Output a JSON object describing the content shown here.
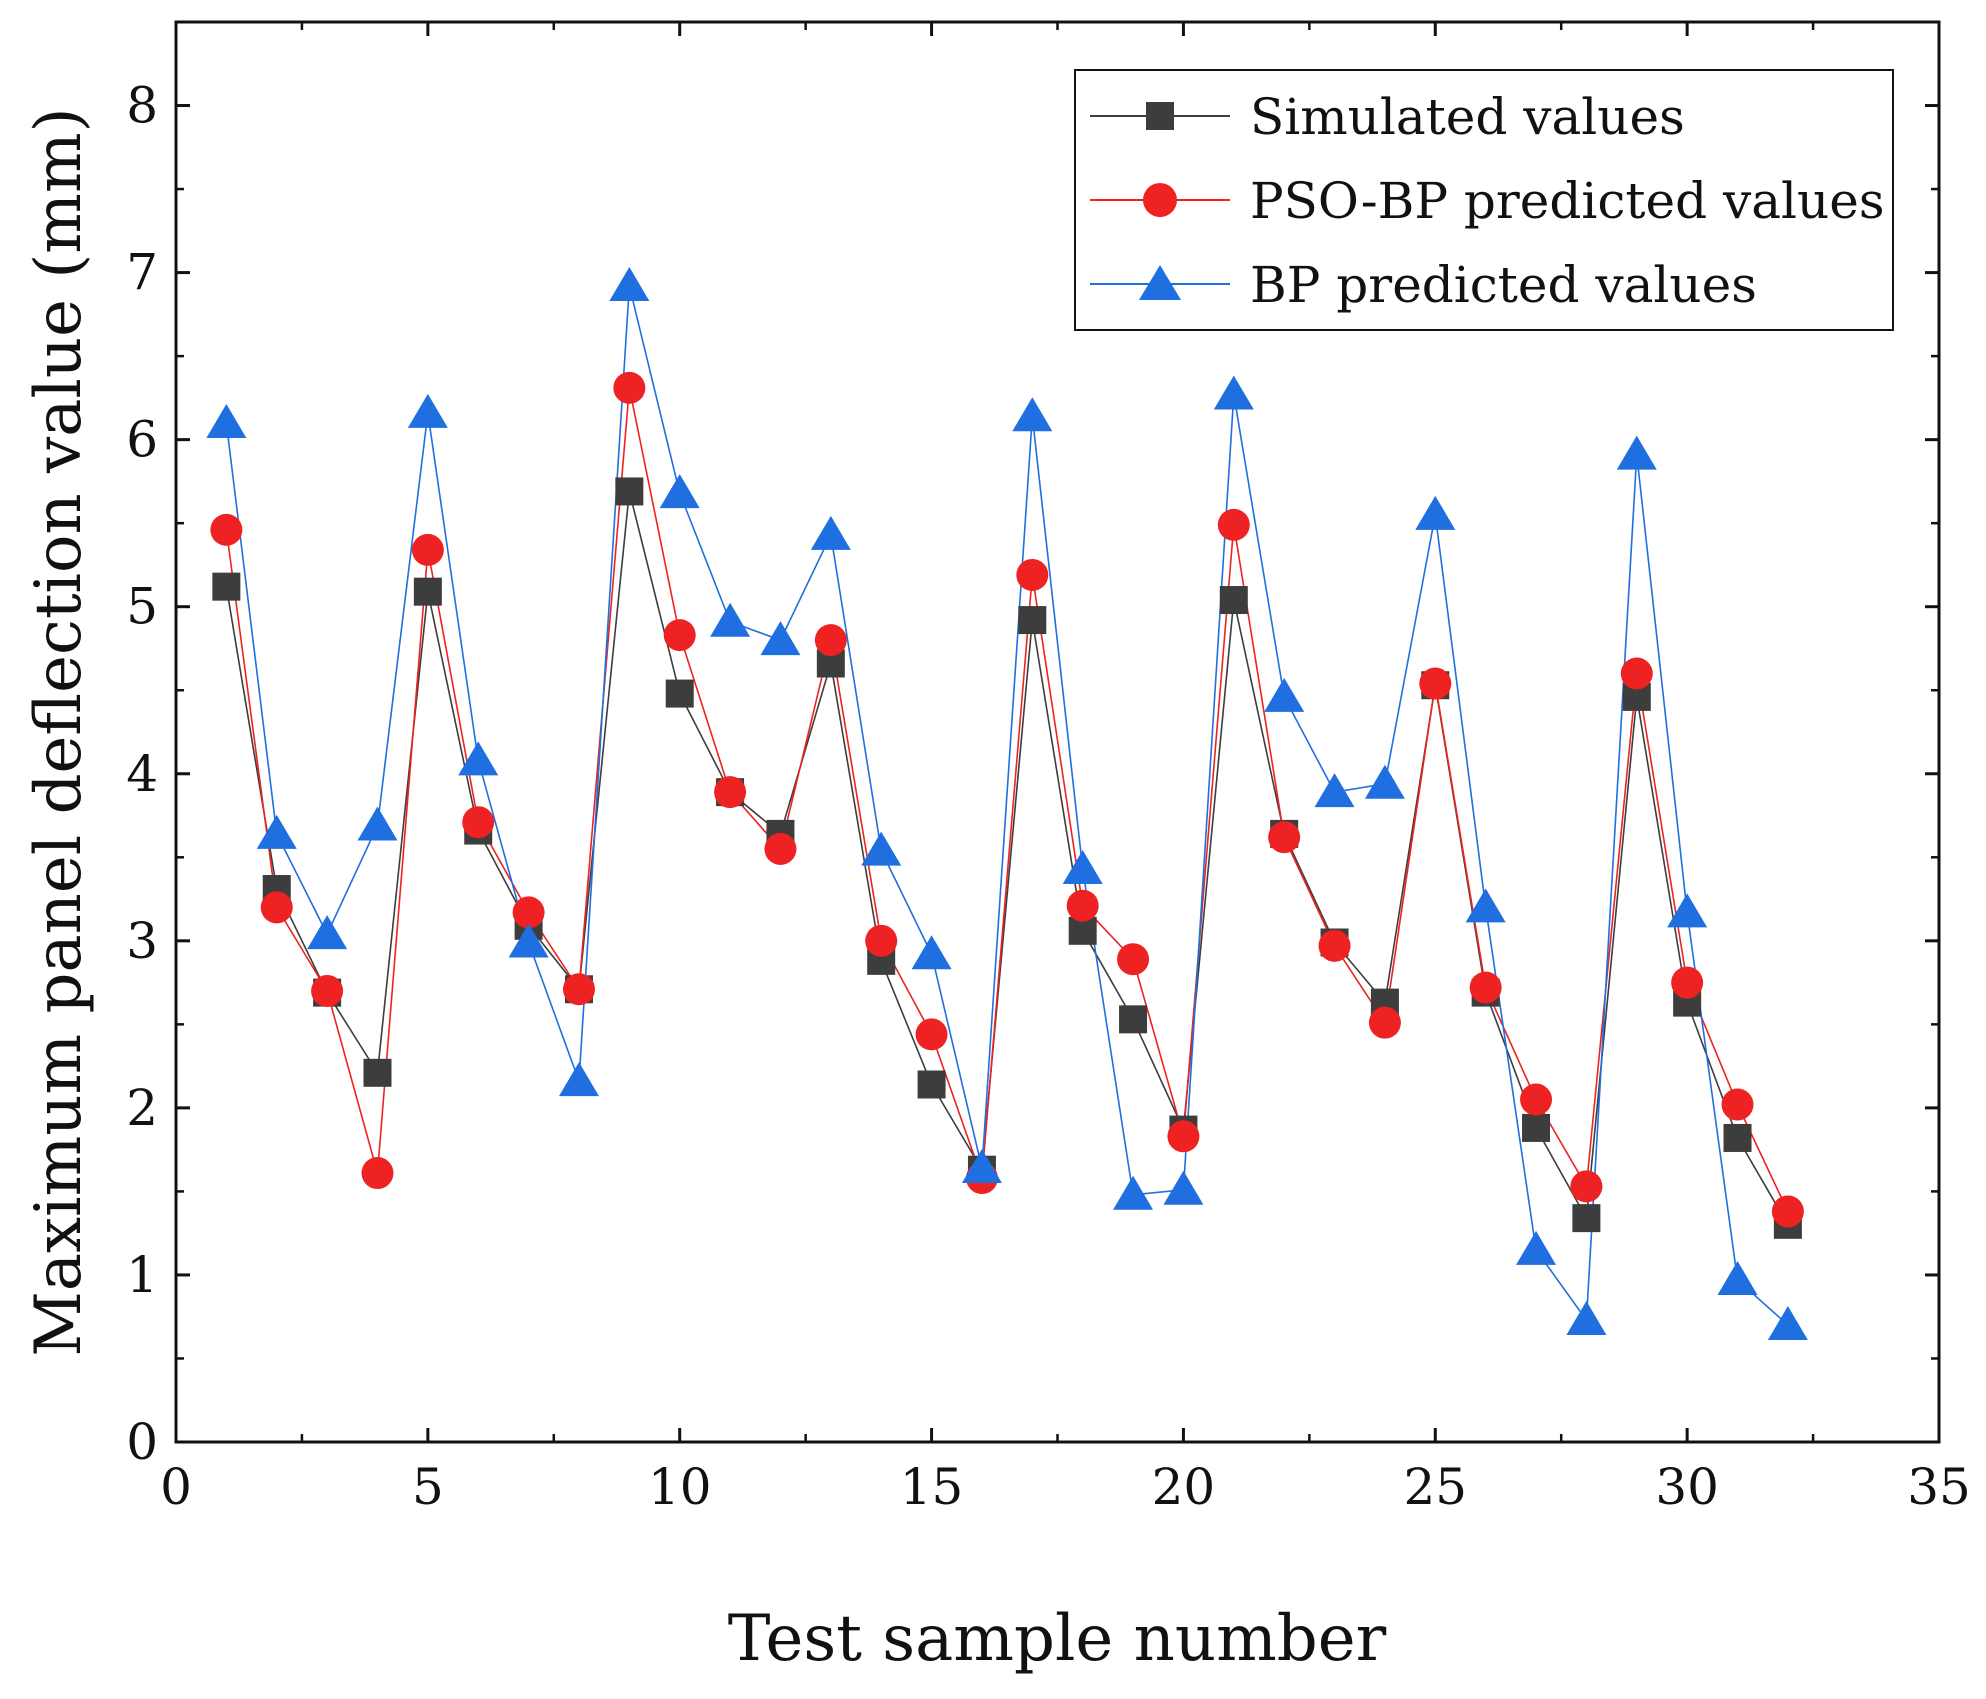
{
  "chart_data": {
    "type": "line",
    "title": "",
    "xlabel": "Test sample number",
    "ylabel": "Maximum panel deflection value (mm)",
    "xlim": [
      0,
      35
    ],
    "ylim": [
      0,
      8.5
    ],
    "xticks": [
      0,
      5,
      10,
      15,
      20,
      25,
      30,
      35
    ],
    "yticks": [
      0,
      1,
      2,
      3,
      4,
      5,
      6,
      7,
      8
    ],
    "grid": false,
    "legend_position": "top-right",
    "x": [
      1,
      2,
      3,
      4,
      5,
      6,
      7,
      8,
      9,
      10,
      11,
      12,
      13,
      14,
      15,
      16,
      17,
      18,
      19,
      20,
      21,
      22,
      23,
      24,
      25,
      26,
      27,
      28,
      29,
      30,
      31,
      32
    ],
    "series": [
      {
        "name": "Simulated values",
        "marker": "square",
        "color": "#3d3d3d",
        "values": [
          5.12,
          3.31,
          2.69,
          2.21,
          5.09,
          3.66,
          3.09,
          2.71,
          5.69,
          4.48,
          3.89,
          3.64,
          4.66,
          2.88,
          2.14,
          1.63,
          4.92,
          3.06,
          2.53,
          1.87,
          5.04,
          3.64,
          2.99,
          2.63,
          4.53,
          2.69,
          1.88,
          1.34,
          4.46,
          2.63,
          1.82,
          1.3
        ]
      },
      {
        "name": "PSO-BP predicted values",
        "marker": "circle",
        "color": "#ee2222",
        "values": [
          5.46,
          3.2,
          2.7,
          1.61,
          5.34,
          3.71,
          3.17,
          2.71,
          6.31,
          4.83,
          3.89,
          3.55,
          4.8,
          3.0,
          2.44,
          1.58,
          5.19,
          3.21,
          2.89,
          1.83,
          5.49,
          3.62,
          2.97,
          2.51,
          4.54,
          2.72,
          2.05,
          1.53,
          4.6,
          2.75,
          2.02,
          1.38
        ]
      },
      {
        "name": "BP predicted values",
        "marker": "triangle",
        "color": "#1f6fe0",
        "values": [
          6.1,
          3.64,
          3.04,
          3.69,
          6.16,
          4.08,
          2.99,
          2.16,
          6.92,
          5.68,
          4.91,
          4.8,
          5.43,
          3.54,
          2.92,
          1.64,
          6.14,
          3.43,
          1.48,
          1.51,
          6.27,
          4.46,
          3.89,
          3.94,
          5.55,
          3.2,
          1.15,
          0.73,
          5.91,
          3.17,
          0.97,
          0.7
        ]
      }
    ]
  }
}
